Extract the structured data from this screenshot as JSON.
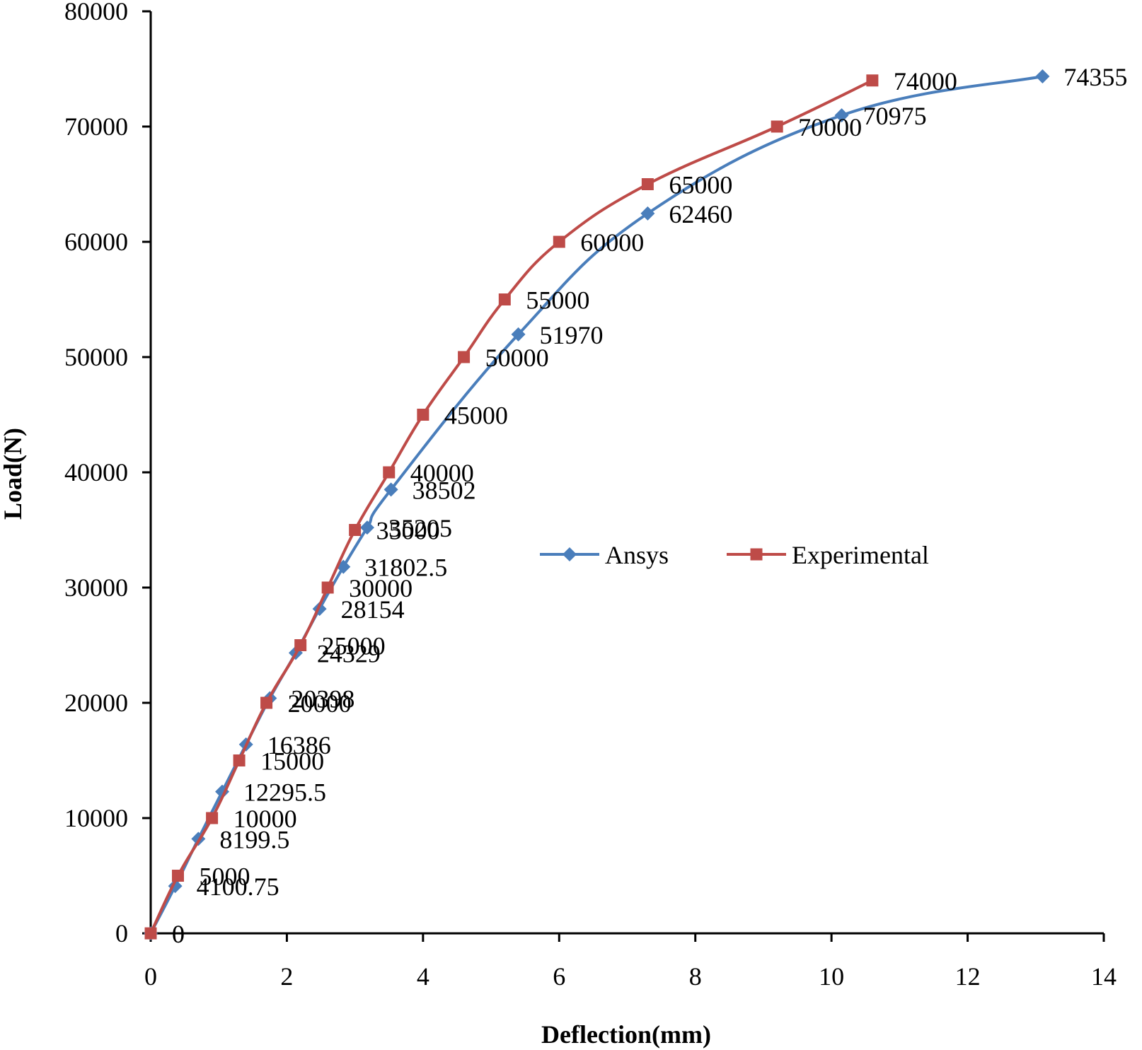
{
  "chart_data": {
    "type": "line",
    "title": "",
    "xlabel": "Deflection(mm)",
    "ylabel": "Load(N)",
    "xlim": [
      0,
      14
    ],
    "ylim": [
      0,
      80000
    ],
    "x_ticks": [
      "0",
      "2",
      "4",
      "6",
      "8",
      "10",
      "12",
      "14"
    ],
    "y_ticks": [
      "0",
      "10000",
      "20000",
      "30000",
      "40000",
      "50000",
      "60000",
      "70000",
      "80000"
    ],
    "grid": false,
    "legend_position": "center-right",
    "series": [
      {
        "name": "Ansys",
        "color": "#4a7ebb",
        "marker": "diamond",
        "x": [
          0,
          0.36,
          0.7,
          1.05,
          1.4,
          1.75,
          2.13,
          2.48,
          2.83,
          3.18,
          3.53,
          5.4,
          7.3,
          10.15,
          13.1
        ],
        "y": [
          0,
          4100.75,
          8199.5,
          12295.5,
          16386,
          20398,
          24329,
          28154,
          31802.5,
          35205,
          38502,
          51970,
          62460,
          70975,
          74355
        ],
        "labels": [
          "0",
          "4100.75",
          "8199.5",
          "12295.5",
          "16386",
          "20398",
          "24329",
          "28154",
          "31802.5",
          "35205",
          "38502",
          "51970",
          "62460",
          "70975",
          "74355"
        ]
      },
      {
        "name": "Experimental",
        "color": "#be4b48",
        "marker": "square",
        "x": [
          0,
          0.4,
          0.9,
          1.3,
          1.7,
          2.2,
          2.6,
          3.0,
          3.5,
          4.0,
          4.6,
          5.2,
          6.0,
          7.3,
          9.2,
          10.6
        ],
        "y": [
          0,
          5000,
          10000,
          15000,
          20000,
          25000,
          30000,
          35000,
          40000,
          45000,
          50000,
          55000,
          60000,
          65000,
          70000,
          74000
        ],
        "labels": [
          "0",
          "5000",
          "10000",
          "15000",
          "20000",
          "25000",
          "30000",
          "35000",
          "40000",
          "45000",
          "50000",
          "55000",
          "60000",
          "65000",
          "70000",
          "74000"
        ]
      }
    ]
  }
}
